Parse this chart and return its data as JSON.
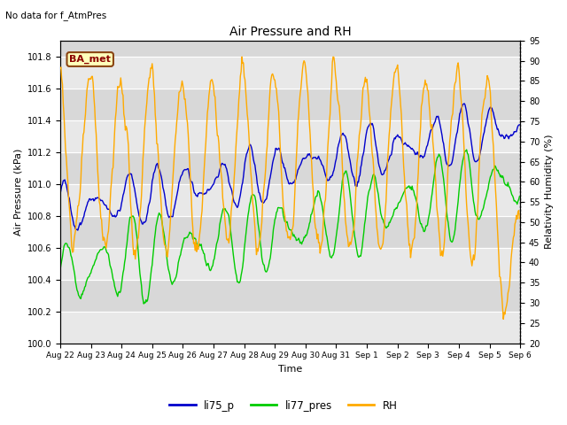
{
  "title": "Air Pressure and RH",
  "subtitle": "No data for f_AtmPres",
  "xlabel": "Time",
  "ylabel_left": "Air Pressure (kPa)",
  "ylabel_right": "Relativity Humidity (%)",
  "annotation": "BA_met",
  "ylim_left": [
    100.0,
    101.9
  ],
  "ylim_right": [
    20,
    95
  ],
  "yticks_left": [
    100.0,
    100.2,
    100.4,
    100.6,
    100.8,
    101.0,
    101.2,
    101.4,
    101.6,
    101.8
  ],
  "yticks_right": [
    20,
    25,
    30,
    35,
    40,
    45,
    50,
    55,
    60,
    65,
    70,
    75,
    80,
    85,
    90,
    95
  ],
  "color_li75": "#0000cc",
  "color_li77": "#00cc00",
  "color_rh": "#ffaa00",
  "bg_color": "#d8d8d8",
  "band_color": "#e8e8e8",
  "n_points": 600,
  "legend_entries": [
    "li75_p",
    "li77_pres",
    "RH"
  ],
  "xticklabels": [
    "Aug 22",
    "Aug 23",
    "Aug 24",
    "Aug 25",
    "Aug 26",
    "Aug 27",
    "Aug 28",
    "Aug 29",
    "Aug 30",
    "Aug 31",
    "Sep 1",
    "Sep 2",
    "Sep 3",
    "Sep 4",
    "Sep 5",
    "Sep 6"
  ]
}
